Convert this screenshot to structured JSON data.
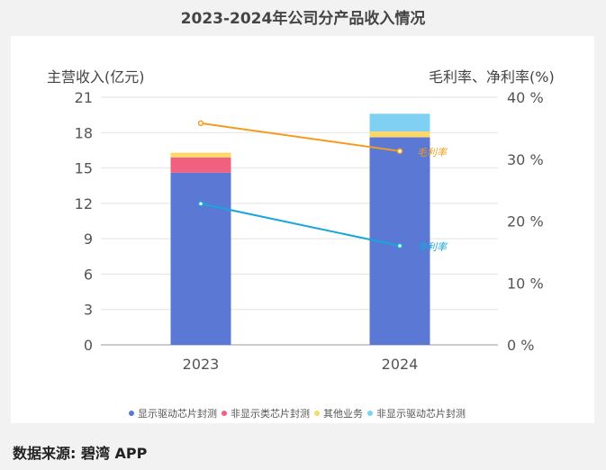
{
  "title": "2023-2024年公司分产品收入情况",
  "source": "数据来源: 碧湾 APP",
  "chart_data": {
    "type": "bar+line",
    "title": "2023-2024年公司分产品收入情况",
    "categories": [
      "2023",
      "2024"
    ],
    "ylabel_left": "主营收入(亿元)",
    "ylabel_right": "毛利率、净利率(%)",
    "ylim_left": [
      0,
      21
    ],
    "yticks_left": [
      "0",
      "3",
      "6",
      "9",
      "12",
      "15",
      "18",
      "21"
    ],
    "ylim_right": [
      0,
      40
    ],
    "yticks_right": [
      "0 %",
      "10 %",
      "20 %",
      "30 %",
      "40 %"
    ],
    "grid": true,
    "legend_position": "bottom",
    "stacked_series": [
      {
        "name": "显示驱动芯片封测",
        "color": "#5b78d4",
        "values": [
          14.6,
          17.6
        ]
      },
      {
        "name": "非显示类芯片封测",
        "color": "#f0607f",
        "values": [
          1.3,
          0
        ]
      },
      {
        "name": "其他业务",
        "color": "#fcd86a",
        "values": [
          0.4,
          0.5
        ]
      },
      {
        "name": "非显示驱动芯片封测",
        "color": "#7fd0f2",
        "values": [
          0,
          1.5
        ]
      }
    ],
    "line_series": [
      {
        "name": "毛利率",
        "color": "#f39c1f",
        "values": [
          35.8,
          31.3
        ]
      },
      {
        "name": "净利率",
        "color": "#19a6d8",
        "values": [
          22.8,
          16.0
        ]
      }
    ]
  }
}
